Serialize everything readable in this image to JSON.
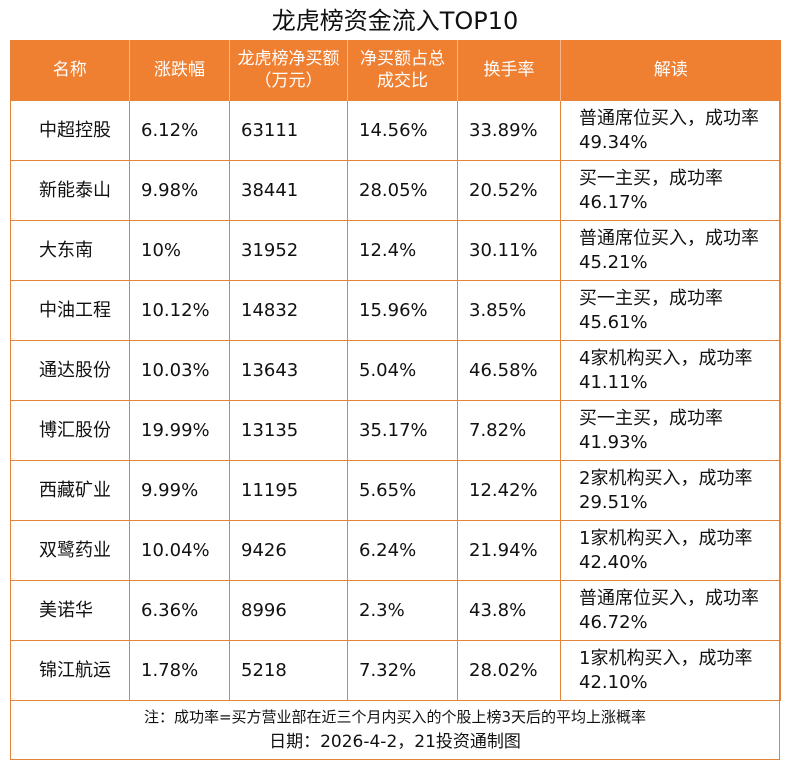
{
  "title": "龙虎榜资金流入TOP10",
  "headers": [
    "名称",
    "涨跌幅",
    "龙虎榜净买额（万元）",
    "净买额占总成交比",
    "换手率",
    "解读"
  ],
  "rows": [
    {
      "name": "中超控股",
      "change": "6.12%",
      "net_buy": "63111",
      "ratio": "14.56%",
      "turnover": "33.89%",
      "interpretation": "普通席位买入，成功率49.34%"
    },
    {
      "name": "新能泰山",
      "change": "9.98%",
      "net_buy": "38441",
      "ratio": "28.05%",
      "turnover": "20.52%",
      "interpretation": "买一主买，成功率46.17%"
    },
    {
      "name": "大东南",
      "change": "10%",
      "net_buy": "31952",
      "ratio": "12.4%",
      "turnover": "30.11%",
      "interpretation": "普通席位买入，成功率45.21%"
    },
    {
      "name": "中油工程",
      "change": "10.12%",
      "net_buy": "14832",
      "ratio": "15.96%",
      "turnover": "3.85%",
      "interpretation": "买一主买，成功率45.61%"
    },
    {
      "name": "通达股份",
      "change": "10.03%",
      "net_buy": "13643",
      "ratio": "5.04%",
      "turnover": "46.58%",
      "interpretation": "4家机构买入，成功率41.11%"
    },
    {
      "name": "博汇股份",
      "change": "19.99%",
      "net_buy": "13135",
      "ratio": "35.17%",
      "turnover": "7.82%",
      "interpretation": "买一主买，成功率41.93%"
    },
    {
      "name": "西藏矿业",
      "change": "9.99%",
      "net_buy": "11195",
      "ratio": "5.65%",
      "turnover": "12.42%",
      "interpretation": "2家机构买入，成功率29.51%"
    },
    {
      "name": "双鹭药业",
      "change": "10.04%",
      "net_buy": "9426",
      "ratio": "6.24%",
      "turnover": "21.94%",
      "interpretation": "1家机构买入，成功率42.40%"
    },
    {
      "name": "美诺华",
      "change": "6.36%",
      "net_buy": "8996",
      "ratio": "2.3%",
      "turnover": "43.8%",
      "interpretation": "普通席位买入，成功率46.72%"
    },
    {
      "name": "锦江航运",
      "change": "1.78%",
      "net_buy": "5218",
      "ratio": "7.32%",
      "turnover": "28.02%",
      "interpretation": "1家机构买入，成功率42.10%"
    }
  ],
  "note": "注：成功率=买方营业部在近三个月内买入的个股上榜3天后的平均上涨概率",
  "footer": "日期：2026-4-2，21投资通制图",
  "colors": {
    "header_bg": "#ef7f31",
    "border": "#e5823a"
  }
}
